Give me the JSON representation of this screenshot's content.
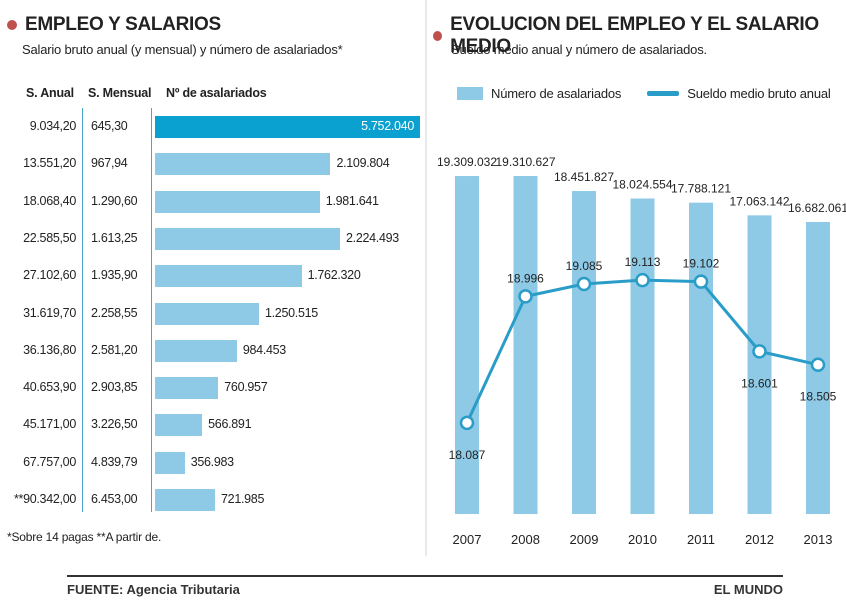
{
  "colors": {
    "accent": "#c0504d",
    "bar": "#8ecae6",
    "bar_top": "#0aa0d0",
    "line": "#2a9cc8",
    "text": "#222222"
  },
  "left": {
    "title": "EMPLEO Y SALARIOS",
    "subtitle": "Salario bruto anual (y mensual) y número de asalariados*",
    "col_headers": [
      "S. Anual",
      "S. Mensual",
      "Nº de asalariados"
    ],
    "footnote": "*Sobre 14 pagas **A partir de."
  },
  "right": {
    "title": "EVOLUCION DEL EMPLEO Y EL SALARIO MEDIO",
    "subtitle": "Sueldo medio anual y número de asalariados.",
    "legend": {
      "bars": "Número de asalariados",
      "line": "Sueldo medio bruto anual"
    }
  },
  "footer": {
    "source": "FUENTE: Agencia Tributaria",
    "brand": "EL MUNDO"
  },
  "chart_data": [
    {
      "type": "table",
      "columns": [
        "S. Anual",
        "S. Mensual",
        "Nº de asalariados"
      ],
      "rows": [
        {
          "anual": "9.034,20",
          "mensual": "645,30",
          "asalariados_label": "5.752.040",
          "asalariados": 5752040
        },
        {
          "anual": "13.551,20",
          "mensual": "967,94",
          "asalariados_label": "2.109.804",
          "asalariados": 2109804
        },
        {
          "anual": "18.068,40",
          "mensual": "1.290,60",
          "asalariados_label": "1.981.641",
          "asalariados": 1981641
        },
        {
          "anual": "22.585,50",
          "mensual": "1.613,25",
          "asalariados_label": "2.224.493",
          "asalariados": 2224493
        },
        {
          "anual": "27.102,60",
          "mensual": "1.935,90",
          "asalariados_label": "1.762.320",
          "asalariados": 1762320
        },
        {
          "anual": "31.619,70",
          "mensual": "2.258,55",
          "asalariados_label": "1.250.515",
          "asalariados": 1250515
        },
        {
          "anual": "36.136,80",
          "mensual": "2.581,20",
          "asalariados_label": "984.453",
          "asalariados": 984453
        },
        {
          "anual": "40.653,90",
          "mensual": "2.903,85",
          "asalariados_label": "760.957",
          "asalariados": 760957
        },
        {
          "anual": "45.171,00",
          "mensual": "3.226,50",
          "asalariados_label": "566.891",
          "asalariados": 566891
        },
        {
          "anual": "67.757,00",
          "mensual": "4.839,79",
          "asalariados_label": "356.983",
          "asalariados": 356983
        },
        {
          "anual": "**90.342,00",
          "mensual": "6.453,00",
          "asalariados_label": "721.985",
          "asalariados": 721985
        }
      ]
    },
    {
      "type": "bar",
      "categories": [
        "2007",
        "2008",
        "2009",
        "2010",
        "2011",
        "2012",
        "2013"
      ],
      "series": [
        {
          "name": "Número de asalariados",
          "type": "bar",
          "values": [
            19309032,
            19310627,
            18451827,
            18024554,
            17788121,
            17063142,
            16682061
          ],
          "labels": [
            "19.309.032",
            "19.310.627",
            "18.451.827",
            "18.024.554",
            "17.788.121",
            "17.063.142",
            "16.682.061"
          ]
        },
        {
          "name": "Sueldo medio bruto anual",
          "type": "line",
          "values": [
            18087,
            18996,
            19085,
            19113,
            19102,
            18601,
            18505
          ],
          "labels": [
            "18.087",
            "18.996",
            "19.085",
            "19.113",
            "19.102",
            "18.601",
            "18.505"
          ]
        }
      ],
      "legend": "top-left"
    }
  ]
}
